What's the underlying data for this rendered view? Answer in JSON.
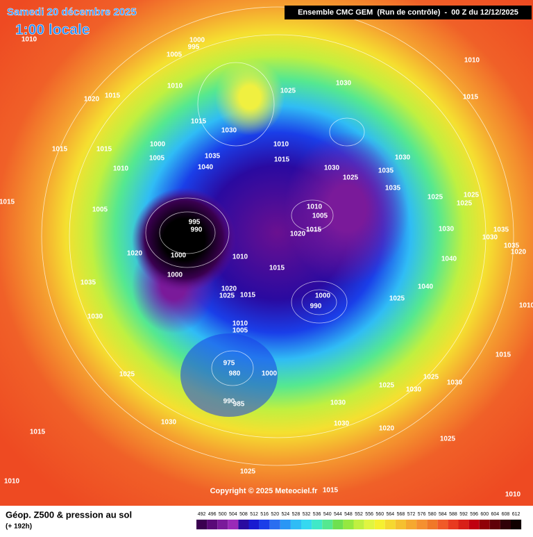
{
  "header": {
    "date": "Samedi 20 décembre 2025",
    "time": "1:00 locale",
    "run": "Ensemble CMC GEM  (Run de contrôle)  -  00 Z du 12/12/2025"
  },
  "copyright": "Copyright © 2025 Meteociel.fr",
  "footer": {
    "title": "Géop. Z500 & pression au sol",
    "lead": "(+ 192h)"
  },
  "isobar_labels": [
    1010,
    1000,
    995,
    1005,
    1010,
    1020,
    1015,
    1025,
    1030,
    1015,
    1030,
    1000,
    1005,
    1015,
    1015,
    1010,
    1040,
    1035,
    1010,
    1015,
    1030,
    1025,
    1035,
    1035,
    1030,
    1025,
    1015,
    1005,
    995,
    990,
    1010,
    1005,
    1015,
    1020,
    1030,
    1040,
    1025,
    1025,
    1035,
    1030,
    1035,
    1020,
    1020,
    1000,
    1010,
    1015,
    1000,
    1020,
    1025,
    1015,
    1035,
    1000,
    990,
    1025,
    1030,
    1010,
    1005,
    975,
    980,
    990,
    985,
    1000,
    1025,
    1025,
    1030,
    1030,
    1030,
    1030,
    1020,
    1025,
    1025,
    1030,
    1015,
    1010,
    1025,
    1015,
    1010,
    1015,
    1010,
    1015,
    1010,
    1040
  ],
  "colorbar": {
    "labels": [
      492,
      496,
      500,
      504,
      508,
      512,
      516,
      520,
      524,
      528,
      532,
      536,
      540,
      544,
      548,
      552,
      556,
      560,
      564,
      568,
      572,
      576,
      580,
      584,
      588,
      592,
      596,
      600,
      604,
      608,
      612
    ],
    "colors": [
      "#3a0050",
      "#5a0a78",
      "#7a1a9a",
      "#9a2ab8",
      "#2a0aa0",
      "#1a1ad0",
      "#1a3ee8",
      "#2a6ef0",
      "#2a96f5",
      "#30bcf5",
      "#35d8f0",
      "#40e8c8",
      "#55e890",
      "#6ee050",
      "#95e840",
      "#c0f040",
      "#e0f540",
      "#f5f030",
      "#f5d830",
      "#f5c030",
      "#f5a830",
      "#f59030",
      "#f07828",
      "#f05a28",
      "#e83a20",
      "#d82018",
      "#c00010",
      "#900008",
      "#600008",
      "#300008",
      "#100000"
    ]
  }
}
